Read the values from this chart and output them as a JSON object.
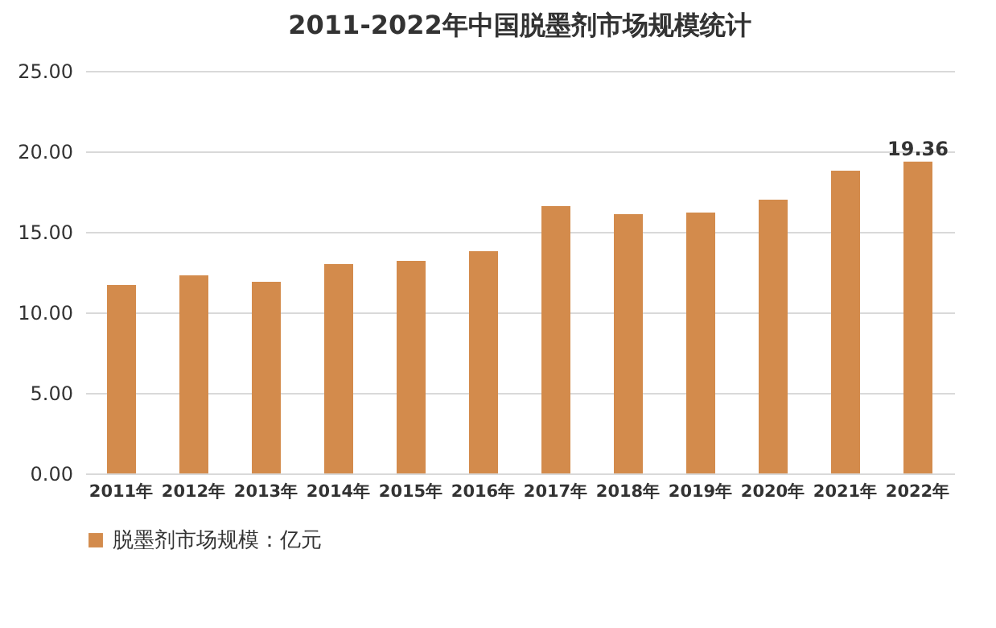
{
  "chart_data": {
    "type": "bar",
    "title": "2011-2022年中国脱墨剂市场规模统计",
    "categories": [
      "2011年",
      "2012年",
      "2013年",
      "2014年",
      "2015年",
      "2016年",
      "2017年",
      "2018年",
      "2019年",
      "2020年",
      "2021年",
      "2022年"
    ],
    "series": [
      {
        "name": "脱墨剂市场规模：亿元",
        "color": "#d38b4c",
        "values": [
          11.7,
          12.3,
          11.9,
          13.0,
          13.2,
          13.8,
          16.6,
          16.1,
          16.2,
          17.0,
          18.8,
          19.36
        ],
        "value_labels": [
          null,
          null,
          null,
          null,
          null,
          null,
          null,
          null,
          null,
          null,
          null,
          "19.36"
        ]
      }
    ],
    "ylim": [
      0,
      25
    ],
    "yticks": [
      {
        "value": 0,
        "label": "0.00"
      },
      {
        "value": 5,
        "label": "5.00"
      },
      {
        "value": 10,
        "label": "10.00"
      },
      {
        "value": 15,
        "label": "15.00"
      },
      {
        "value": 20,
        "label": "20.00"
      },
      {
        "value": 25,
        "label": "25.00"
      }
    ],
    "grid": "y",
    "legend": "bottom"
  }
}
